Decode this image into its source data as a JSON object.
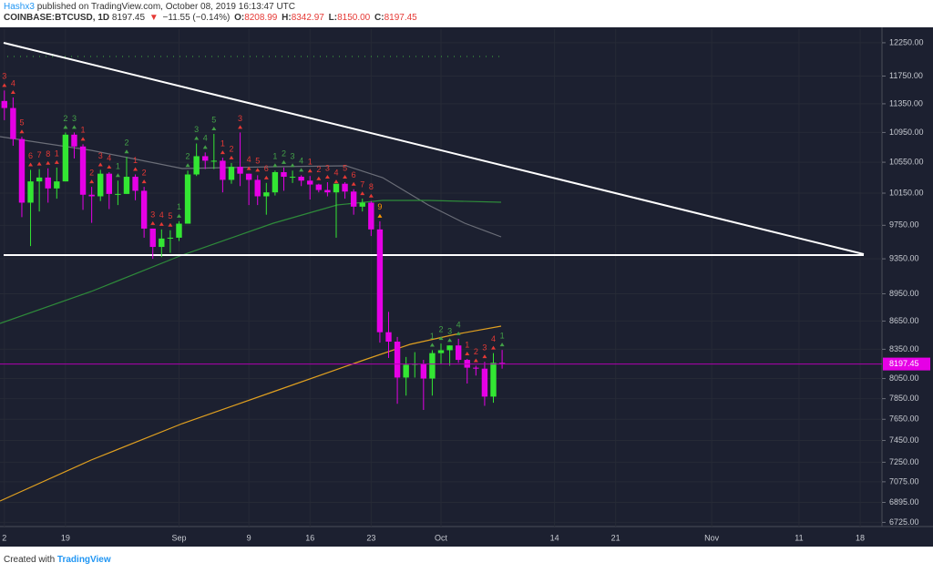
{
  "header": {
    "author": "Hashx3",
    "published": "published on TradingView.com, October 08, 2019 16:13:47 UTC",
    "symbol": "COINBASE:BTCUSD, 1D",
    "last": "8197.45",
    "arrow": "▼",
    "change": "−11.55 (−0.14%)",
    "o_label": "O:",
    "o": "8208.99",
    "h_label": "H:",
    "h": "8342.97",
    "l_label": "L:",
    "l": "8150.00",
    "c_label": "C:",
    "c": "8197.45"
  },
  "footer": {
    "created": "Created with",
    "brand": "TradingView"
  },
  "chart_data": {
    "type": "candlestick",
    "log_scale": true,
    "grid": true,
    "up_color": "#33e633",
    "down_color": "#e600e6",
    "ylim": [
      6690,
      12460
    ],
    "yticks": [
      {
        "value": 12250,
        "label": "12250.00"
      },
      {
        "value": 11750,
        "label": "11750.00"
      },
      {
        "value": 11350,
        "label": "11350.00"
      },
      {
        "value": 10950,
        "label": "10950.00"
      },
      {
        "value": 10550,
        "label": "10550.00"
      },
      {
        "value": 10150,
        "label": "10150.00"
      },
      {
        "value": 9750,
        "label": "9750.00"
      },
      {
        "value": 9350,
        "label": "9350.00"
      },
      {
        "value": 8950,
        "label": "8950.00"
      },
      {
        "value": 8650,
        "label": "8650.00"
      },
      {
        "value": 8350,
        "label": "8350.00"
      },
      {
        "value": 8050,
        "label": "8050.00"
      },
      {
        "value": 7850,
        "label": "7850.00"
      },
      {
        "value": 7650,
        "label": "7650.00"
      },
      {
        "value": 7450,
        "label": "7450.00"
      },
      {
        "value": 7250,
        "label": "7250.00"
      },
      {
        "value": 7075,
        "label": "7075.00"
      },
      {
        "value": 6895,
        "label": "6895.00"
      },
      {
        "value": 6725,
        "label": "6725.00"
      }
    ],
    "last_price": {
      "value": 8197.45,
      "label": "8197.45"
    },
    "categories": [
      "2",
      null,
      null,
      null,
      null,
      null,
      null,
      "19",
      null,
      null,
      null,
      null,
      null,
      null,
      null,
      null,
      null,
      null,
      null,
      null,
      "Sep",
      null,
      null,
      null,
      null,
      null,
      null,
      null,
      "9",
      null,
      null,
      null,
      null,
      null,
      null,
      "16",
      null,
      null,
      null,
      null,
      null,
      null,
      "23",
      null,
      null,
      null,
      null,
      null,
      null,
      null,
      "Oct",
      null,
      null,
      null,
      null,
      null,
      null,
      null,
      null,
      null,
      null,
      null,
      null,
      "14",
      null,
      null,
      null,
      null,
      null,
      null,
      "21",
      null,
      null,
      null,
      null,
      null,
      null,
      null,
      null,
      null,
      null,
      "Nov",
      null,
      null,
      null,
      null,
      null,
      null,
      null,
      null,
      null,
      "11",
      null,
      null,
      null,
      null,
      null,
      null,
      "18",
      null,
      null
    ],
    "open": [
      11390,
      11290,
      10860,
      10030,
      10300,
      10350,
      10210,
      10300,
      10920,
      10760,
      10130,
      10110,
      10400,
      10140,
      10140,
      10360,
      10180,
      9710,
      9490,
      9590,
      9600,
      9770,
      10390,
      10630,
      10570,
      10570,
      10320,
      10490,
      10400,
      10320,
      10110,
      10160,
      10420,
      10360,
      10360,
      10310,
      10260,
      10190,
      10160,
      10270,
      10170,
      9980,
      10030,
      9700,
      8530,
      8430,
      8060,
      8190,
      8200,
      8050,
      8310,
      8340,
      8390,
      8240,
      8160,
      8150,
      7870,
      8208.99,
      null,
      null,
      null,
      null,
      null,
      null,
      null,
      null,
      null,
      null,
      null,
      null,
      null,
      null,
      null,
      null,
      null,
      null,
      null,
      null,
      null,
      null,
      null,
      null,
      null,
      null,
      null,
      null,
      null,
      null,
      null,
      null,
      null,
      null,
      null,
      null,
      null,
      null,
      null,
      null,
      null,
      null,
      null
    ],
    "high": [
      11540,
      11440,
      10890,
      10450,
      10460,
      10470,
      10480,
      10950,
      10950,
      10790,
      10230,
      10450,
      10420,
      10310,
      10620,
      10390,
      10230,
      9710,
      9700,
      9690,
      9800,
      10440,
      10800,
      10680,
      10930,
      10610,
      10540,
      10950,
      10400,
      10380,
      10280,
      10440,
      10480,
      10440,
      10380,
      10370,
      10270,
      10290,
      10230,
      10290,
      10200,
      10080,
      10050,
      9800,
      8750,
      8480,
      8270,
      8320,
      8240,
      8340,
      8410,
      8390,
      8460,
      8250,
      8180,
      8220,
      8310,
      8342.97,
      null,
      null,
      null,
      null,
      null,
      null,
      null,
      null,
      null,
      null,
      null,
      null,
      null,
      null,
      null,
      null,
      null,
      null,
      null,
      null,
      null,
      null,
      null,
      null,
      null,
      null,
      null,
      null,
      null,
      null,
      null,
      null,
      null,
      null,
      null,
      null,
      null,
      null,
      null,
      null,
      null,
      null,
      null
    ],
    "low": [
      11120,
      10770,
      9850,
      9500,
      9920,
      10030,
      10080,
      10300,
      10600,
      9940,
      9780,
      10050,
      9950,
      10000,
      10140,
      10060,
      9600,
      9350,
      9370,
      9420,
      9560,
      9770,
      10370,
      10460,
      10460,
      10160,
      10270,
      10240,
      10000,
      10000,
      9880,
      10120,
      10180,
      10280,
      10240,
      10070,
      10160,
      10110,
      9600,
      10080,
      9880,
      9920,
      9620,
      8420,
      8260,
      7800,
      7880,
      8060,
      7740,
      7880,
      8200,
      8180,
      8210,
      8000,
      8080,
      7780,
      7810,
      8150,
      null,
      null,
      null,
      null,
      null,
      null,
      null,
      null,
      null,
      null,
      null,
      null,
      null,
      null,
      null,
      null,
      null,
      null,
      null,
      null,
      null,
      null,
      null,
      null,
      null,
      null,
      null,
      null,
      null,
      null,
      null,
      null,
      null,
      null,
      null,
      null,
      null,
      null,
      null,
      null,
      null,
      null,
      null
    ],
    "close": [
      11290,
      10860,
      10030,
      10300,
      10350,
      10210,
      10300,
      10920,
      10760,
      10130,
      10110,
      10400,
      10140,
      10140,
      10360,
      10180,
      9710,
      9490,
      9590,
      9600,
      9770,
      10390,
      10630,
      10570,
      10570,
      10320,
      10490,
      10400,
      10320,
      10110,
      10160,
      10420,
      10360,
      10360,
      10310,
      10260,
      10190,
      10160,
      10270,
      10170,
      9980,
      10030,
      9700,
      8530,
      8430,
      8060,
      8190,
      8200,
      8050,
      8310,
      8340,
      8390,
      8240,
      8160,
      8150,
      7870,
      8210,
      8197.45,
      null,
      null,
      null,
      null,
      null,
      null,
      null,
      null,
      null,
      null,
      null,
      null,
      null,
      null,
      null,
      null,
      null,
      null,
      null,
      null,
      null,
      null,
      null,
      null,
      null,
      null,
      null,
      null,
      null,
      null,
      null,
      null,
      null,
      null,
      null,
      null,
      null,
      null,
      null,
      null,
      null,
      null,
      null
    ],
    "setup_counts": [
      "3",
      "4",
      "5",
      "6",
      "7",
      "8",
      "1",
      "2",
      "3",
      "1",
      "2",
      "3",
      "4",
      "1",
      "2",
      "1",
      "2",
      "3",
      "4",
      "5",
      "1",
      "2",
      "3",
      "4",
      "5",
      "1",
      "2",
      "3",
      "4",
      "5",
      "6",
      "1",
      "2",
      "3",
      "4",
      "1",
      "2",
      "3",
      "4",
      "5",
      "6",
      "7",
      "8",
      "9",
      null,
      null,
      null,
      null,
      null,
      "1",
      "2",
      "3",
      "4",
      "1",
      "2",
      "3",
      "4",
      "1",
      null,
      null,
      null,
      null,
      null,
      null,
      null,
      null,
      null,
      null,
      null,
      null,
      null,
      null,
      null,
      null,
      null,
      null,
      null,
      null,
      null,
      null,
      null,
      null,
      null,
      null,
      null,
      null,
      null,
      null,
      null,
      null,
      null,
      null,
      null,
      null,
      null,
      null,
      null,
      null,
      null,
      null,
      null,
      null,
      null
    ],
    "setup_colors": [
      "#e53935",
      "#e53935",
      "#e53935",
      "#e53935",
      "#e53935",
      "#e53935",
      "#e53935",
      "#43a047",
      "#43a047",
      "#e53935",
      "#e53935",
      "#e53935",
      "#e53935",
      "#43a047",
      "#43a047",
      "#e53935",
      "#e53935",
      "#e53935",
      "#e53935",
      "#e53935",
      "#43a047",
      "#43a047",
      "#43a047",
      "#43a047",
      "#43a047",
      "#e53935",
      "#e53935",
      "#e53935",
      "#e53935",
      "#e53935",
      "#e53935",
      "#43a047",
      "#43a047",
      "#43a047",
      "#43a047",
      "#e53935",
      "#e53935",
      "#e53935",
      "#e53935",
      "#e53935",
      "#e53935",
      "#e53935",
      "#e53935",
      "#ff9800",
      null,
      null,
      null,
      null,
      null,
      "#43a047",
      "#43a047",
      "#43a047",
      "#43a047",
      "#e53935",
      "#e53935",
      "#e53935",
      "#e53935",
      "#43a047",
      null,
      null,
      null,
      null,
      null,
      null,
      null,
      null,
      null,
      null,
      null,
      null,
      null,
      null,
      null,
      null,
      null,
      null,
      null,
      null,
      null,
      null,
      null,
      null,
      null,
      null,
      null,
      null,
      null,
      null,
      null,
      null,
      null,
      null,
      null,
      null,
      null,
      null,
      null,
      null,
      null,
      null,
      null
    ]
  }
}
